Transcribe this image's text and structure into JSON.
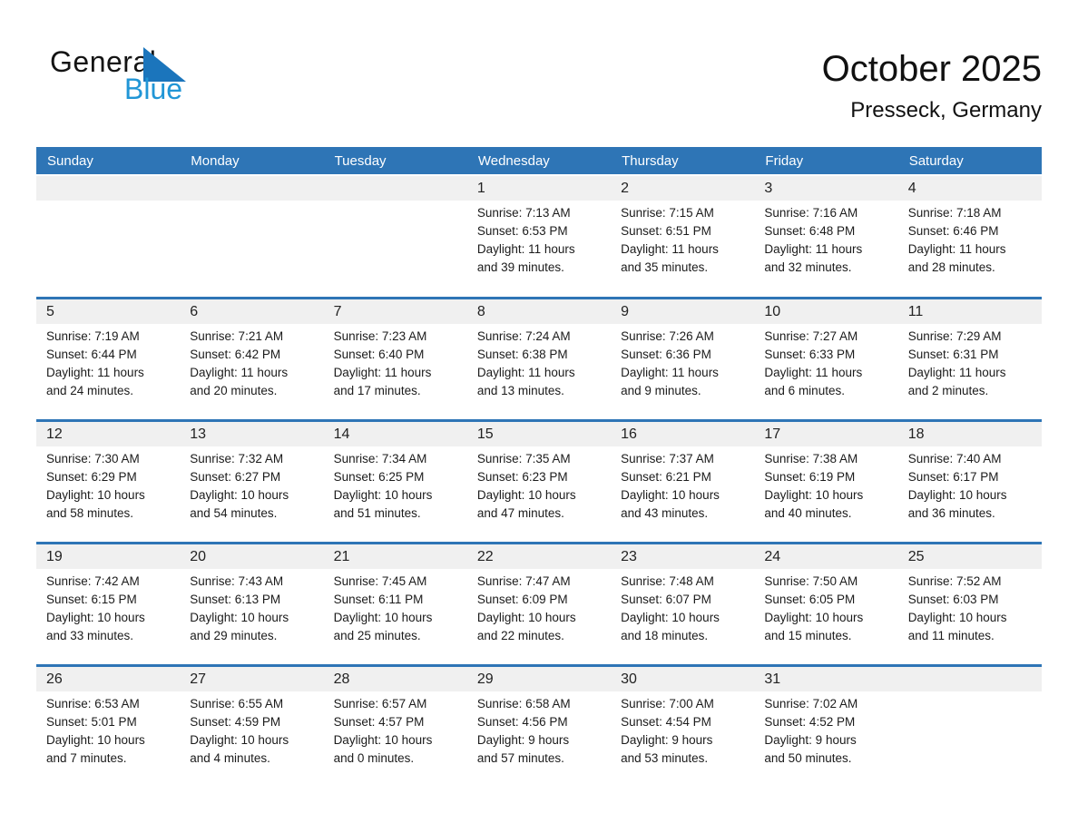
{
  "logo": {
    "general": "General",
    "blue": "Blue",
    "triangle_icon": "flag-triangle-icon"
  },
  "header": {
    "title": "October 2025",
    "subtitle": "Presseck, Germany"
  },
  "colors": {
    "header_blue": "#2e75b6",
    "week_divider_blue": "#2e75b6",
    "day_strip_gray": "#f0f0f0",
    "logo_triangle_blue": "#1b75bc",
    "logo_text_blue": "#2196d6"
  },
  "weekdays": [
    "Sunday",
    "Monday",
    "Tuesday",
    "Wednesday",
    "Thursday",
    "Friday",
    "Saturday"
  ],
  "weeks": [
    {
      "days": [
        null,
        null,
        null,
        {
          "date": "1",
          "sunrise": "Sunrise: 7:13 AM",
          "sunset": "Sunset: 6:53 PM",
          "daylight1": "Daylight: 11 hours",
          "daylight2": "and 39 minutes."
        },
        {
          "date": "2",
          "sunrise": "Sunrise: 7:15 AM",
          "sunset": "Sunset: 6:51 PM",
          "daylight1": "Daylight: 11 hours",
          "daylight2": "and 35 minutes."
        },
        {
          "date": "3",
          "sunrise": "Sunrise: 7:16 AM",
          "sunset": "Sunset: 6:48 PM",
          "daylight1": "Daylight: 11 hours",
          "daylight2": "and 32 minutes."
        },
        {
          "date": "4",
          "sunrise": "Sunrise: 7:18 AM",
          "sunset": "Sunset: 6:46 PM",
          "daylight1": "Daylight: 11 hours",
          "daylight2": "and 28 minutes."
        }
      ]
    },
    {
      "days": [
        {
          "date": "5",
          "sunrise": "Sunrise: 7:19 AM",
          "sunset": "Sunset: 6:44 PM",
          "daylight1": "Daylight: 11 hours",
          "daylight2": "and 24 minutes."
        },
        {
          "date": "6",
          "sunrise": "Sunrise: 7:21 AM",
          "sunset": "Sunset: 6:42 PM",
          "daylight1": "Daylight: 11 hours",
          "daylight2": "and 20 minutes."
        },
        {
          "date": "7",
          "sunrise": "Sunrise: 7:23 AM",
          "sunset": "Sunset: 6:40 PM",
          "daylight1": "Daylight: 11 hours",
          "daylight2": "and 17 minutes."
        },
        {
          "date": "8",
          "sunrise": "Sunrise: 7:24 AM",
          "sunset": "Sunset: 6:38 PM",
          "daylight1": "Daylight: 11 hours",
          "daylight2": "and 13 minutes."
        },
        {
          "date": "9",
          "sunrise": "Sunrise: 7:26 AM",
          "sunset": "Sunset: 6:36 PM",
          "daylight1": "Daylight: 11 hours",
          "daylight2": "and 9 minutes."
        },
        {
          "date": "10",
          "sunrise": "Sunrise: 7:27 AM",
          "sunset": "Sunset: 6:33 PM",
          "daylight1": "Daylight: 11 hours",
          "daylight2": "and 6 minutes."
        },
        {
          "date": "11",
          "sunrise": "Sunrise: 7:29 AM",
          "sunset": "Sunset: 6:31 PM",
          "daylight1": "Daylight: 11 hours",
          "daylight2": "and 2 minutes."
        }
      ]
    },
    {
      "days": [
        {
          "date": "12",
          "sunrise": "Sunrise: 7:30 AM",
          "sunset": "Sunset: 6:29 PM",
          "daylight1": "Daylight: 10 hours",
          "daylight2": "and 58 minutes."
        },
        {
          "date": "13",
          "sunrise": "Sunrise: 7:32 AM",
          "sunset": "Sunset: 6:27 PM",
          "daylight1": "Daylight: 10 hours",
          "daylight2": "and 54 minutes."
        },
        {
          "date": "14",
          "sunrise": "Sunrise: 7:34 AM",
          "sunset": "Sunset: 6:25 PM",
          "daylight1": "Daylight: 10 hours",
          "daylight2": "and 51 minutes."
        },
        {
          "date": "15",
          "sunrise": "Sunrise: 7:35 AM",
          "sunset": "Sunset: 6:23 PM",
          "daylight1": "Daylight: 10 hours",
          "daylight2": "and 47 minutes."
        },
        {
          "date": "16",
          "sunrise": "Sunrise: 7:37 AM",
          "sunset": "Sunset: 6:21 PM",
          "daylight1": "Daylight: 10 hours",
          "daylight2": "and 43 minutes."
        },
        {
          "date": "17",
          "sunrise": "Sunrise: 7:38 AM",
          "sunset": "Sunset: 6:19 PM",
          "daylight1": "Daylight: 10 hours",
          "daylight2": "and 40 minutes."
        },
        {
          "date": "18",
          "sunrise": "Sunrise: 7:40 AM",
          "sunset": "Sunset: 6:17 PM",
          "daylight1": "Daylight: 10 hours",
          "daylight2": "and 36 minutes."
        }
      ]
    },
    {
      "days": [
        {
          "date": "19",
          "sunrise": "Sunrise: 7:42 AM",
          "sunset": "Sunset: 6:15 PM",
          "daylight1": "Daylight: 10 hours",
          "daylight2": "and 33 minutes."
        },
        {
          "date": "20",
          "sunrise": "Sunrise: 7:43 AM",
          "sunset": "Sunset: 6:13 PM",
          "daylight1": "Daylight: 10 hours",
          "daylight2": "and 29 minutes."
        },
        {
          "date": "21",
          "sunrise": "Sunrise: 7:45 AM",
          "sunset": "Sunset: 6:11 PM",
          "daylight1": "Daylight: 10 hours",
          "daylight2": "and 25 minutes."
        },
        {
          "date": "22",
          "sunrise": "Sunrise: 7:47 AM",
          "sunset": "Sunset: 6:09 PM",
          "daylight1": "Daylight: 10 hours",
          "daylight2": "and 22 minutes."
        },
        {
          "date": "23",
          "sunrise": "Sunrise: 7:48 AM",
          "sunset": "Sunset: 6:07 PM",
          "daylight1": "Daylight: 10 hours",
          "daylight2": "and 18 minutes."
        },
        {
          "date": "24",
          "sunrise": "Sunrise: 7:50 AM",
          "sunset": "Sunset: 6:05 PM",
          "daylight1": "Daylight: 10 hours",
          "daylight2": "and 15 minutes."
        },
        {
          "date": "25",
          "sunrise": "Sunrise: 7:52 AM",
          "sunset": "Sunset: 6:03 PM",
          "daylight1": "Daylight: 10 hours",
          "daylight2": "and 11 minutes."
        }
      ]
    },
    {
      "days": [
        {
          "date": "26",
          "sunrise": "Sunrise: 6:53 AM",
          "sunset": "Sunset: 5:01 PM",
          "daylight1": "Daylight: 10 hours",
          "daylight2": "and 7 minutes."
        },
        {
          "date": "27",
          "sunrise": "Sunrise: 6:55 AM",
          "sunset": "Sunset: 4:59 PM",
          "daylight1": "Daylight: 10 hours",
          "daylight2": "and 4 minutes."
        },
        {
          "date": "28",
          "sunrise": "Sunrise: 6:57 AM",
          "sunset": "Sunset: 4:57 PM",
          "daylight1": "Daylight: 10 hours",
          "daylight2": "and 0 minutes."
        },
        {
          "date": "29",
          "sunrise": "Sunrise: 6:58 AM",
          "sunset": "Sunset: 4:56 PM",
          "daylight1": "Daylight: 9 hours",
          "daylight2": "and 57 minutes."
        },
        {
          "date": "30",
          "sunrise": "Sunrise: 7:00 AM",
          "sunset": "Sunset: 4:54 PM",
          "daylight1": "Daylight: 9 hours",
          "daylight2": "and 53 minutes."
        },
        {
          "date": "31",
          "sunrise": "Sunrise: 7:02 AM",
          "sunset": "Sunset: 4:52 PM",
          "daylight1": "Daylight: 9 hours",
          "daylight2": "and 50 minutes."
        },
        null
      ]
    }
  ]
}
